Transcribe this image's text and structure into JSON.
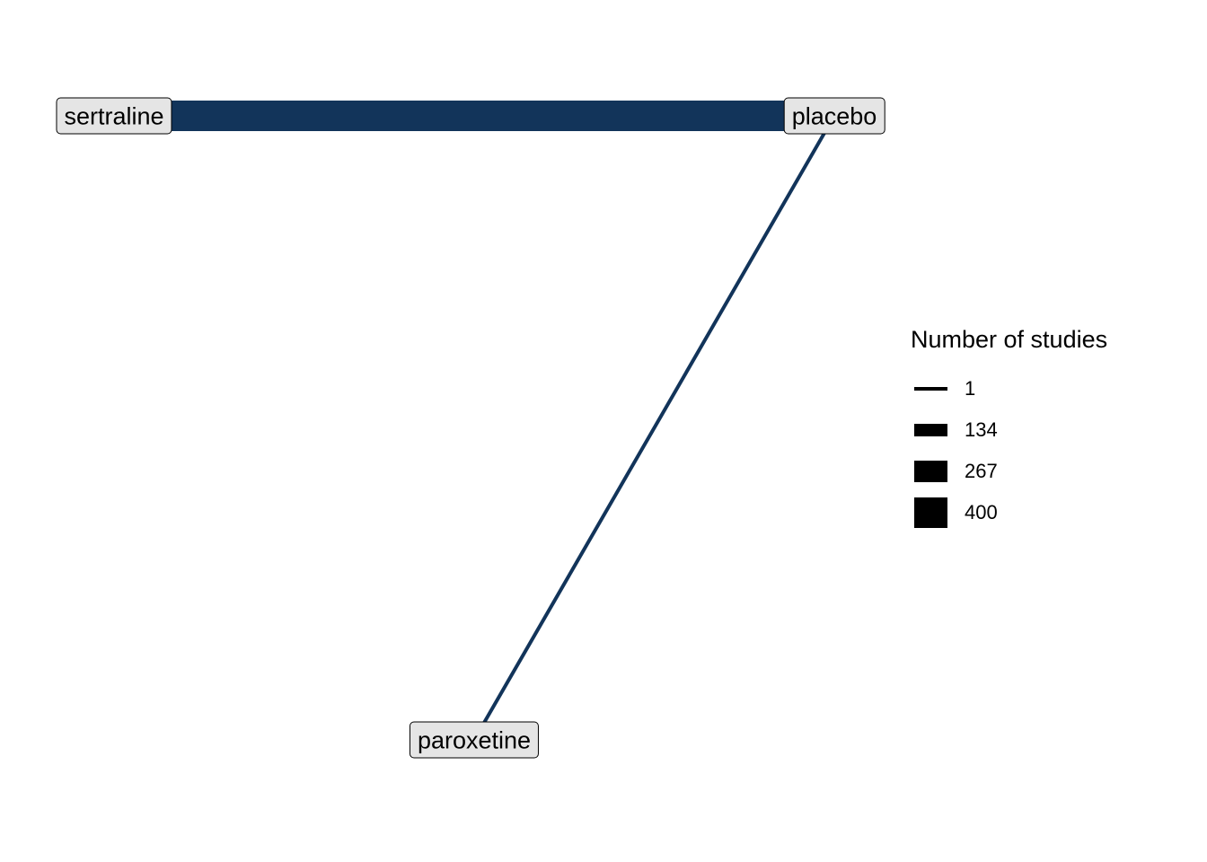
{
  "network": {
    "edge_color": "#12345a",
    "node_fill": "#e5e5e5",
    "nodes": [
      {
        "id": "sertraline",
        "label": "sertraline"
      },
      {
        "id": "placebo",
        "label": "placebo"
      },
      {
        "id": "paroxetine",
        "label": "paroxetine"
      }
    ],
    "edges": [
      {
        "from": "sertraline",
        "to": "placebo",
        "studies": 400
      },
      {
        "from": "placebo",
        "to": "paroxetine",
        "studies": 1
      }
    ]
  },
  "legend": {
    "title": "Number of studies",
    "items": [
      {
        "label": "1",
        "value": 1
      },
      {
        "label": "134",
        "value": 134
      },
      {
        "label": "267",
        "value": 267
      },
      {
        "label": "400",
        "value": 400
      }
    ]
  }
}
